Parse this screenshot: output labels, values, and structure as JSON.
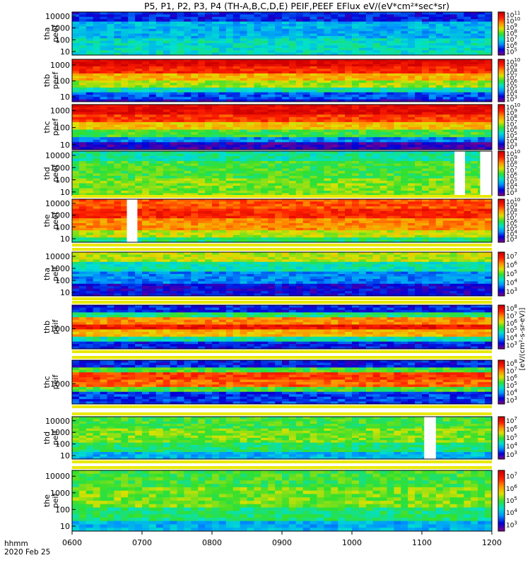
{
  "title": "P5, P1, P2, P3, P4 (TH-A,B,C,D,E) PEIF,PEEF EFlux eV/(eV*cm²*sec*sr)",
  "footer": {
    "label": "hhmm",
    "date": "2020 Feb 25"
  },
  "chart_data": {
    "type": "heatmap",
    "title": "P5, P1, P2, P3, P4 (TH-A,B,C,D,E) PEIF,PEEF EFlux eV/(eV*cm²*sec*sr)",
    "x": {
      "label": "hhmm",
      "ticks": [
        "0600",
        "0700",
        "0800",
        "0900",
        "1000",
        "1100",
        "1200"
      ],
      "range": [
        "0600",
        "1200"
      ]
    },
    "colorbar_unit": "[eV/(cm²-s-sr-eV)]",
    "scale_colors": [
      "#80008a",
      "#0000d8",
      "#0090ff",
      "#00e0d0",
      "#30e030",
      "#e0e000",
      "#ff9000",
      "#ff2000",
      "#d00000"
    ],
    "panels": [
      {
        "name_line1": "tha",
        "name_line2": "peef",
        "yticks": [
          "10",
          "100",
          "1000",
          "10000"
        ],
        "cb_exps": [
          "5",
          "6",
          "7",
          "8",
          "9",
          "10",
          "11"
        ],
        "cb_range": [
          100000.0,
          100000000000.0
        ],
        "bands": [
          {
            "from": 0,
            "to": 0.25,
            "level": 0.15
          },
          {
            "from": 0.25,
            "to": 0.6,
            "level": 0.3
          },
          {
            "from": 0.6,
            "to": 1,
            "level": 0.38
          }
        ],
        "gaps": [],
        "fill_bars": []
      },
      {
        "name_line1": "thb",
        "name_line2": "peef",
        "yticks": [
          "10",
          "100",
          "1000"
        ],
        "cb_exps": [
          "3",
          "4",
          "5",
          "6",
          "7",
          "8",
          "9",
          "10"
        ],
        "cb_range": [
          1000.0,
          10000000000.0
        ],
        "bands": [
          {
            "from": 0,
            "to": 0.18,
            "level": 0.97
          },
          {
            "from": 0.18,
            "to": 0.35,
            "level": 0.88
          },
          {
            "from": 0.35,
            "to": 0.5,
            "level": 0.7
          },
          {
            "from": 0.5,
            "to": 0.65,
            "level": 0.58
          },
          {
            "from": 0.65,
            "to": 0.8,
            "level": 0.4
          },
          {
            "from": 0.8,
            "to": 0.92,
            "level": 0.2
          },
          {
            "from": 0.92,
            "to": 1,
            "level": 0.1
          }
        ],
        "gaps": [],
        "fill_bars": []
      },
      {
        "name_line1": "thc",
        "name_line2": "peef",
        "yticks": [
          "10",
          "100",
          "1000"
        ],
        "cb_exps": [
          "3",
          "4",
          "5",
          "6",
          "7",
          "8",
          "9",
          "10"
        ],
        "cb_range": [
          1000.0,
          10000000000.0
        ],
        "bands": [
          {
            "from": 0,
            "to": 0.2,
            "level": 0.96
          },
          {
            "from": 0.2,
            "to": 0.38,
            "level": 0.85
          },
          {
            "from": 0.38,
            "to": 0.55,
            "level": 0.68
          },
          {
            "from": 0.55,
            "to": 0.7,
            "level": 0.5
          },
          {
            "from": 0.7,
            "to": 0.85,
            "level": 0.25
          },
          {
            "from": 0.85,
            "to": 1,
            "level": 0.08
          }
        ],
        "gaps": [],
        "fill_bars": []
      },
      {
        "name_line1": "thd",
        "name_line2": "peef",
        "yticks": [
          "10",
          "100",
          "1000",
          "10000"
        ],
        "cb_exps": [
          "3",
          "4",
          "5",
          "6",
          "7",
          "8",
          "9",
          "10"
        ],
        "cb_range": [
          1000.0,
          10000000000.0
        ],
        "bands": [
          {
            "from": 0,
            "to": 0.25,
            "level": 0.42
          },
          {
            "from": 0.25,
            "to": 0.6,
            "level": 0.5
          },
          {
            "from": 0.6,
            "to": 1,
            "level": 0.55
          }
        ],
        "gaps": [
          {
            "start": "1128",
            "end": "1137"
          },
          {
            "start": "1150",
            "end": "1200"
          }
        ],
        "fill_bars": []
      },
      {
        "name_line1": "the",
        "name_line2": "peef",
        "yticks": [
          "10",
          "100",
          "1000",
          "10000"
        ],
        "cb_exps": [
          "3",
          "4",
          "5",
          "6",
          "7",
          "8",
          "9",
          "10"
        ],
        "cb_range": [
          1000.0,
          10000000000.0
        ],
        "bands": [
          {
            "from": 0,
            "to": 0.2,
            "level": 0.82
          },
          {
            "from": 0.2,
            "to": 0.45,
            "level": 0.88
          },
          {
            "from": 0.45,
            "to": 0.7,
            "level": 0.75
          },
          {
            "from": 0.7,
            "to": 0.88,
            "level": 0.6
          },
          {
            "from": 0.88,
            "to": 1,
            "level": 0.45
          }
        ],
        "gaps": [
          {
            "start": "0647",
            "end": "0656"
          }
        ],
        "fill_bars": [
          "top",
          "bottom"
        ]
      },
      {
        "name_line1": "tha",
        "name_line2": "peif",
        "yticks": [
          "10",
          "100",
          "1000",
          "10000"
        ],
        "cb_exps": [
          "3",
          "4",
          "5",
          "6",
          "7"
        ],
        "cb_range": [
          1000.0,
          10000000.0
        ],
        "bands": [
          {
            "from": 0,
            "to": 0.2,
            "level": 0.6
          },
          {
            "from": 0.2,
            "to": 0.45,
            "level": 0.4
          },
          {
            "from": 0.45,
            "to": 0.7,
            "level": 0.25
          },
          {
            "from": 0.7,
            "to": 1,
            "level": 0.12
          }
        ],
        "gaps": [],
        "fill_bars": [
          "top",
          "bottom"
        ]
      },
      {
        "name_line1": "thb",
        "name_line2": "peif",
        "yticks": [
          "1000"
        ],
        "cb_exps": [
          "3",
          "4",
          "5",
          "6",
          "7",
          "8"
        ],
        "cb_range": [
          1000.0,
          100000000.0
        ],
        "bands": [
          {
            "from": 0,
            "to": 0.15,
            "level": 0.15
          },
          {
            "from": 0.15,
            "to": 0.3,
            "level": 0.45
          },
          {
            "from": 0.3,
            "to": 0.42,
            "level": 0.75
          },
          {
            "from": 0.42,
            "to": 0.58,
            "level": 0.92
          },
          {
            "from": 0.58,
            "to": 0.7,
            "level": 0.7
          },
          {
            "from": 0.7,
            "to": 0.82,
            "level": 0.4
          },
          {
            "from": 0.82,
            "to": 1,
            "level": 0.15
          }
        ],
        "gaps": [],
        "fill_bars": [
          "top",
          "bottom"
        ]
      },
      {
        "name_line1": "thc",
        "name_line2": "peif",
        "yticks": [
          "1000"
        ],
        "cb_exps": [
          "3",
          "4",
          "5",
          "6",
          "7",
          "8"
        ],
        "cb_range": [
          1000.0,
          100000000.0
        ],
        "bands": [
          {
            "from": 0,
            "to": 0.15,
            "level": 0.15
          },
          {
            "from": 0.15,
            "to": 0.3,
            "level": 0.5
          },
          {
            "from": 0.3,
            "to": 0.45,
            "level": 0.85
          },
          {
            "from": 0.45,
            "to": 0.6,
            "level": 0.8
          },
          {
            "from": 0.6,
            "to": 0.75,
            "level": 0.5
          },
          {
            "from": 0.75,
            "to": 1,
            "level": 0.18
          }
        ],
        "gaps": [],
        "fill_bars": [
          "top",
          "bottom"
        ]
      },
      {
        "name_line1": "thd",
        "name_line2": "peif",
        "yticks": [
          "10",
          "100",
          "1000",
          "10000"
        ],
        "cb_exps": [
          "3",
          "4",
          "5",
          "6",
          "7"
        ],
        "cb_range": [
          1000.0,
          10000000.0
        ],
        "bands": [
          {
            "from": 0,
            "to": 0.3,
            "level": 0.5
          },
          {
            "from": 0.3,
            "to": 0.6,
            "level": 0.55
          },
          {
            "from": 0.6,
            "to": 0.85,
            "level": 0.45
          },
          {
            "from": 0.85,
            "to": 1,
            "level": 0.3
          }
        ],
        "gaps": [
          {
            "start": "1102",
            "end": "1112"
          }
        ],
        "fill_bars": [
          "top",
          "bottom"
        ]
      },
      {
        "name_line1": "the",
        "name_line2": "peif",
        "yticks": [
          "10",
          "100",
          "1000",
          "10000"
        ],
        "cb_exps": [
          "3",
          "4",
          "5",
          "6",
          "7"
        ],
        "cb_range": [
          1000.0,
          10000000.0
        ],
        "bands": [
          {
            "from": 0,
            "to": 0.3,
            "level": 0.5
          },
          {
            "from": 0.3,
            "to": 0.6,
            "level": 0.55
          },
          {
            "from": 0.6,
            "to": 0.85,
            "level": 0.45
          },
          {
            "from": 0.85,
            "to": 1,
            "level": 0.3
          }
        ],
        "gaps": [],
        "fill_bars": [
          "top"
        ]
      }
    ]
  }
}
